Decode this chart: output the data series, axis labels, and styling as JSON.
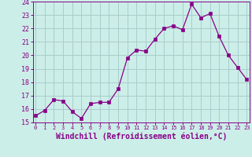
{
  "x": [
    0,
    1,
    2,
    3,
    4,
    5,
    6,
    7,
    8,
    9,
    10,
    11,
    12,
    13,
    14,
    15,
    16,
    17,
    18,
    19,
    20,
    21,
    22,
    23
  ],
  "y": [
    15.5,
    15.9,
    16.7,
    16.6,
    15.8,
    15.3,
    16.4,
    16.5,
    16.5,
    17.5,
    19.8,
    20.4,
    20.3,
    21.2,
    22.0,
    22.2,
    21.9,
    23.8,
    22.8,
    23.1,
    21.4,
    20.0,
    19.1,
    18.2
  ],
  "line_color": "#880088",
  "marker": "s",
  "marker_size": 2.5,
  "background_color": "#cceee8",
  "grid_color": "#aacccc",
  "xlabel": "Windchill (Refroidissement éolien,°C)",
  "xlabel_color": "#880088",
  "ylim": [
    15,
    24
  ],
  "ytick_min": 15,
  "ytick_max": 24,
  "xticks": [
    0,
    1,
    2,
    3,
    4,
    5,
    6,
    7,
    8,
    9,
    10,
    11,
    12,
    13,
    14,
    15,
    16,
    17,
    18,
    19,
    20,
    21,
    22,
    23
  ],
  "tick_color": "#880088",
  "spine_color": "#880088",
  "xtick_fontsize": 5.0,
  "ytick_fontsize": 6.0,
  "xlabel_fontsize": 7.0
}
